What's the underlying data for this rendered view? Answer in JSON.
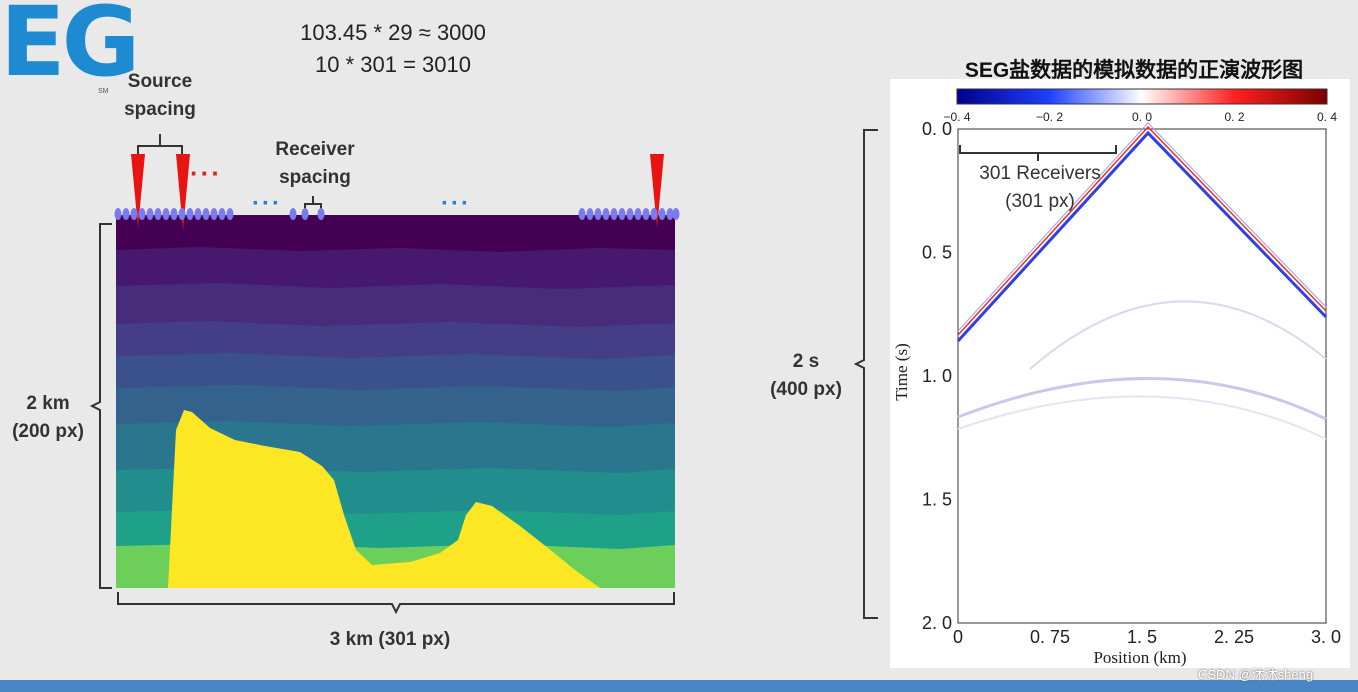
{
  "logo": {
    "text": "EG",
    "tm": "SM"
  },
  "formulas": {
    "line1": "103.45 * 29 ≈ 3000",
    "line2": "10 * 301 = 3010"
  },
  "model": {
    "source_spacing_l1": "Source",
    "source_spacing_l2": "spacing",
    "dots_red": "···",
    "receiver_spacing_l1": "Receiver",
    "receiver_spacing_l2": "spacing",
    "dots_blue_1": "···",
    "dots_blue_2": "···",
    "depth_l1": "2 km",
    "depth_l2": "(200 px)",
    "width_label": "3 km (301 px)",
    "colors": {
      "water": "#440154",
      "salt": "#fde725",
      "bottom": "#6ccf59"
    }
  },
  "chart_data": {
    "type": "heatmap",
    "title": "SEG盐数据的模拟数据的正演波形图",
    "xlabel": "Position (km)",
    "ylabel": "Time (s)",
    "xlim": [
      0,
      3.0
    ],
    "ylim": [
      2.0,
      0.0
    ],
    "xticks": [
      "0",
      "0. 75",
      "1. 5",
      "2. 25",
      "3. 0"
    ],
    "yticks": [
      "0. 0",
      "0. 5",
      "1. 0",
      "1. 5",
      "2. 0"
    ],
    "colorbar": {
      "ticks": [
        "−0. 4",
        "−0. 2",
        "0. 0",
        "0. 2",
        "0. 4"
      ],
      "range": [
        -0.4,
        0.4
      ]
    },
    "annotations": {
      "receivers_l1": "301 Receivers",
      "receivers_l2": "(301 px)",
      "time_l1": "2 s",
      "time_l2": "(400 px)"
    }
  },
  "watermark": "CSDN @沐沐sheng"
}
